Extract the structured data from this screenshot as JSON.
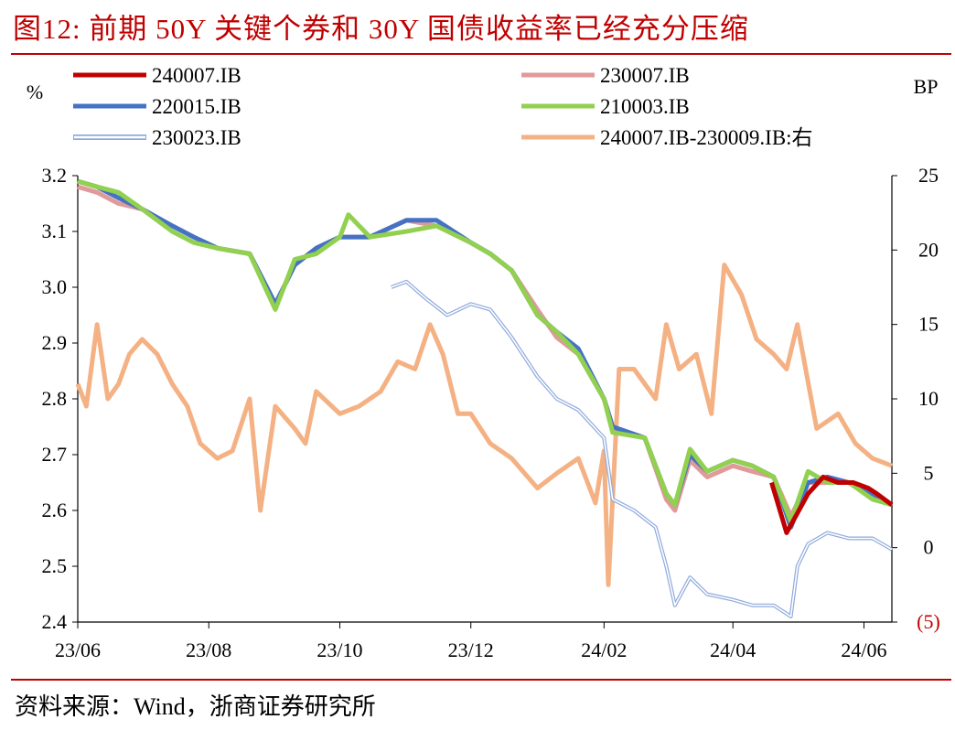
{
  "title": "图12:  前期 50Y 关键个券和 30Y 国债收益率已经充分压缩",
  "source": "资料来源：Wind，浙商证券研究所",
  "colors": {
    "title": "#c00000",
    "rule": "#c00000",
    "negative_tick": "#c00000"
  },
  "chart_data": {
    "type": "line",
    "ylabel_left": "%",
    "ylabel_right": "BP",
    "ylim_left": [
      2.4,
      3.2
    ],
    "ylim_right": [
      -5,
      25
    ],
    "left_ticks": [
      "3.2",
      "3.1",
      "3.0",
      "2.9",
      "2.8",
      "2.7",
      "2.6",
      "2.5",
      "2.4"
    ],
    "right_ticks": [
      "25",
      "20",
      "15",
      "10",
      "5",
      "0",
      "(5)"
    ],
    "x_ticks": [
      "23/06",
      "23/08",
      "23/10",
      "23/12",
      "24/02",
      "24/04",
      "24/06"
    ],
    "x_range": [
      "2023-06-01",
      "2024-06-14"
    ],
    "grid": false,
    "legend_position": "top",
    "series": [
      {
        "name": "240007.IB",
        "axis": "left",
        "color": "#c00000",
        "style": "solid",
        "x": [
          "2024-04-19",
          "2024-04-26",
          "2024-05-06",
          "2024-05-13",
          "2024-05-20",
          "2024-05-27",
          "2024-06-03",
          "2024-06-07",
          "2024-06-14"
        ],
        "values": [
          2.65,
          2.56,
          2.63,
          2.66,
          2.65,
          2.65,
          2.64,
          2.63,
          2.61
        ]
      },
      {
        "name": "230007.IB",
        "axis": "left",
        "color": "#e09a9a",
        "style": "solid",
        "x": [
          "2023-06-01",
          "2023-06-10",
          "2023-06-20",
          "2023-07-01",
          "2023-07-15",
          "2023-07-25",
          "2023-08-05",
          "2023-08-20",
          "2023-09-01",
          "2023-09-10",
          "2023-09-20",
          "2023-10-01",
          "2023-10-15",
          "2023-11-01",
          "2023-11-15",
          "2023-12-01",
          "2023-12-10",
          "2023-12-20",
          "2024-01-01",
          "2024-01-10",
          "2024-01-20",
          "2024-02-01",
          "2024-02-05",
          "2024-02-20",
          "2024-03-01",
          "2024-03-05",
          "2024-03-12",
          "2024-03-20",
          "2024-04-01",
          "2024-04-10",
          "2024-04-20",
          "2024-04-28",
          "2024-05-06",
          "2024-05-15",
          "2024-05-25",
          "2024-06-05",
          "2024-06-14"
        ],
        "values": [
          3.18,
          3.17,
          3.15,
          3.14,
          3.11,
          3.09,
          3.07,
          3.06,
          2.97,
          3.04,
          3.07,
          3.09,
          3.09,
          3.12,
          3.11,
          3.08,
          3.06,
          3.03,
          2.96,
          2.91,
          2.88,
          2.8,
          2.75,
          2.73,
          2.62,
          2.6,
          2.69,
          2.66,
          2.68,
          2.67,
          2.66,
          2.59,
          2.65,
          2.65,
          2.65,
          2.63,
          2.61
        ]
      },
      {
        "name": "220015.IB",
        "axis": "left",
        "color": "#4472c4",
        "style": "solid",
        "x": [
          "2023-06-01",
          "2023-06-10",
          "2023-06-20",
          "2023-07-01",
          "2023-07-15",
          "2023-07-25",
          "2023-08-05",
          "2023-08-20",
          "2023-09-01",
          "2023-09-10",
          "2023-09-20",
          "2023-10-01",
          "2023-10-15",
          "2023-11-01",
          "2023-11-15",
          "2023-12-01",
          "2023-12-10",
          "2023-12-20",
          "2024-01-01",
          "2024-01-10",
          "2024-01-20",
          "2024-02-01",
          "2024-02-05",
          "2024-02-20",
          "2024-03-01",
          "2024-03-05",
          "2024-03-12",
          "2024-03-20",
          "2024-04-01",
          "2024-04-10",
          "2024-04-20",
          "2024-04-28",
          "2024-05-06",
          "2024-05-15",
          "2024-05-25",
          "2024-06-05",
          "2024-06-14"
        ],
        "values": [
          3.19,
          3.18,
          3.16,
          3.14,
          3.11,
          3.09,
          3.07,
          3.06,
          2.97,
          3.04,
          3.07,
          3.09,
          3.09,
          3.12,
          3.12,
          3.08,
          3.06,
          3.03,
          2.95,
          2.92,
          2.89,
          2.8,
          2.75,
          2.73,
          2.63,
          2.61,
          2.7,
          2.67,
          2.69,
          2.68,
          2.66,
          2.57,
          2.65,
          2.66,
          2.65,
          2.63,
          2.61
        ]
      },
      {
        "name": "210003.IB",
        "axis": "left",
        "color": "#92d050",
        "style": "solid",
        "x": [
          "2023-06-01",
          "2023-06-10",
          "2023-06-20",
          "2023-07-01",
          "2023-07-15",
          "2023-07-25",
          "2023-08-05",
          "2023-08-20",
          "2023-09-01",
          "2023-09-10",
          "2023-09-20",
          "2023-10-01",
          "2023-10-05",
          "2023-10-15",
          "2023-11-01",
          "2023-11-15",
          "2023-12-01",
          "2023-12-10",
          "2023-12-20",
          "2024-01-01",
          "2024-01-10",
          "2024-01-20",
          "2024-02-01",
          "2024-02-05",
          "2024-02-20",
          "2024-03-01",
          "2024-03-05",
          "2024-03-12",
          "2024-03-20",
          "2024-04-01",
          "2024-04-10",
          "2024-04-20",
          "2024-04-28",
          "2024-05-06",
          "2024-05-15",
          "2024-05-25",
          "2024-06-05",
          "2024-06-14"
        ],
        "values": [
          3.19,
          3.18,
          3.17,
          3.14,
          3.1,
          3.08,
          3.07,
          3.06,
          2.96,
          3.05,
          3.06,
          3.09,
          3.13,
          3.09,
          3.1,
          3.11,
          3.08,
          3.06,
          3.03,
          2.95,
          2.92,
          2.88,
          2.8,
          2.74,
          2.73,
          2.63,
          2.61,
          2.71,
          2.67,
          2.69,
          2.68,
          2.66,
          2.58,
          2.67,
          2.65,
          2.65,
          2.62,
          2.61
        ]
      },
      {
        "name": "230023.IB",
        "axis": "left",
        "color": "#8faadc",
        "style": "double",
        "x": [
          "2023-10-25",
          "2023-11-01",
          "2023-11-10",
          "2023-11-20",
          "2023-12-01",
          "2023-12-10",
          "2023-12-20",
          "2024-01-01",
          "2024-01-10",
          "2024-01-20",
          "2024-02-01",
          "2024-02-05",
          "2024-02-15",
          "2024-02-25",
          "2024-03-01",
          "2024-03-05",
          "2024-03-12",
          "2024-03-20",
          "2024-04-01",
          "2024-04-10",
          "2024-04-20",
          "2024-04-28",
          "2024-05-01",
          "2024-05-06",
          "2024-05-15",
          "2024-05-25",
          "2024-06-05",
          "2024-06-14"
        ],
        "values": [
          3.0,
          3.01,
          2.98,
          2.95,
          2.97,
          2.96,
          2.91,
          2.84,
          2.8,
          2.78,
          2.73,
          2.62,
          2.6,
          2.57,
          2.5,
          2.43,
          2.48,
          2.45,
          2.44,
          2.43,
          2.43,
          2.41,
          2.5,
          2.54,
          2.56,
          2.55,
          2.55,
          2.53
        ]
      },
      {
        "name": "240007.IB-230009.IB:右",
        "axis": "right",
        "color": "#f4b183",
        "style": "solid",
        "x": [
          "2023-06-01",
          "2023-06-05",
          "2023-06-10",
          "2023-06-15",
          "2023-06-20",
          "2023-06-25",
          "2023-07-01",
          "2023-07-08",
          "2023-07-15",
          "2023-07-22",
          "2023-07-28",
          "2023-08-05",
          "2023-08-12",
          "2023-08-20",
          "2023-08-25",
          "2023-09-01",
          "2023-09-10",
          "2023-09-15",
          "2023-09-20",
          "2023-10-01",
          "2023-10-10",
          "2023-10-20",
          "2023-10-28",
          "2023-11-05",
          "2023-11-12",
          "2023-11-18",
          "2023-11-25",
          "2023-12-01",
          "2023-12-10",
          "2023-12-20",
          "2024-01-01",
          "2024-01-10",
          "2024-01-20",
          "2024-01-28",
          "2024-02-01",
          "2024-02-03",
          "2024-02-08",
          "2024-02-15",
          "2024-02-25",
          "2024-03-01",
          "2024-03-07",
          "2024-03-15",
          "2024-03-22",
          "2024-03-28",
          "2024-04-05",
          "2024-04-12",
          "2024-04-20",
          "2024-04-26",
          "2024-05-01",
          "2024-05-10",
          "2024-05-20",
          "2024-05-28",
          "2024-06-05",
          "2024-06-14"
        ],
        "values": [
          11,
          9.5,
          15,
          10,
          11,
          13,
          14,
          13,
          11,
          9.5,
          7,
          6,
          6.5,
          10,
          2.5,
          9.5,
          8,
          7,
          10.5,
          9,
          9.5,
          10.5,
          12.5,
          12,
          15,
          13,
          9,
          9,
          7,
          6,
          4,
          5,
          6,
          3,
          6.5,
          -2.5,
          12,
          12,
          10,
          15,
          12,
          13,
          9,
          19,
          17,
          14,
          13,
          12,
          15,
          8,
          9,
          7,
          6,
          5.5
        ]
      }
    ]
  }
}
